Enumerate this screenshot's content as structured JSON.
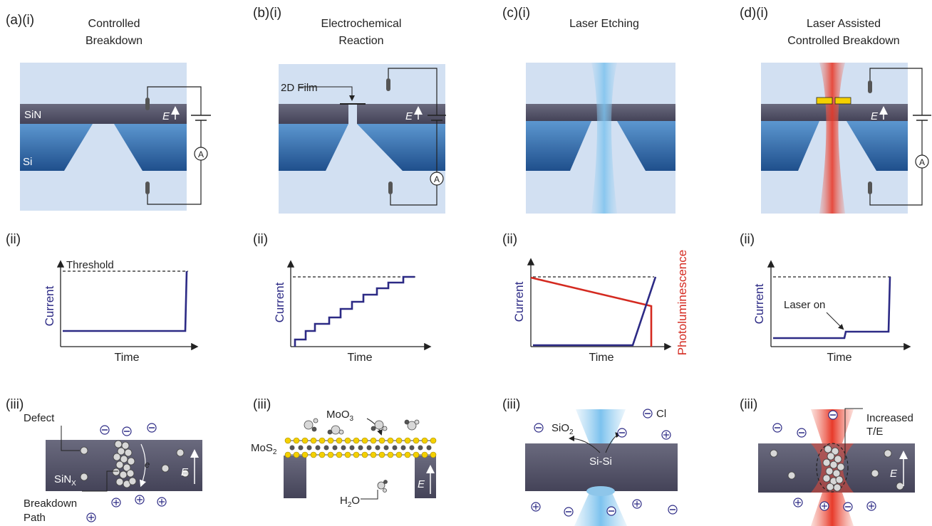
{
  "panels": [
    {
      "id": "a",
      "row_i_label": "(a)(i)",
      "title_lines": [
        "Controlled",
        "Breakdown"
      ],
      "layer_labels": {
        "top": "SiN",
        "bottom": "Si"
      },
      "field_label": "E",
      "ammeter_label": "A",
      "row_ii_label": "(ii)",
      "threshold_label": "Threshold",
      "y_axis_label": "Current",
      "x_axis_label": "Time",
      "row_iii_label": "(iii)",
      "defect_label": "Defect",
      "material_label": "SiN",
      "material_sub": "X",
      "electron_label": "e",
      "breakdown_label_lines": [
        "Breakdown",
        "Path"
      ]
    },
    {
      "id": "b",
      "row_i_label": "(b)(i)",
      "title_lines": [
        "Electrochemical",
        "Reaction"
      ],
      "film_label": "2D Film",
      "field_label": "E",
      "ammeter_label": "A",
      "row_ii_label": "(ii)",
      "y_axis_label": "Current",
      "x_axis_label": "Time",
      "row_iii_label": "(iii)",
      "moo3_label": "MoO",
      "moo3_sub": "3",
      "mos2_label": "MoS",
      "mos2_sub": "2",
      "h2o_label_pre": "H",
      "h2o_sub": "2",
      "h2o_label_post": "O",
      "field_label_iii": "E"
    },
    {
      "id": "c",
      "row_i_label": "(c)(i)",
      "title_lines": [
        "Laser Etching"
      ],
      "row_ii_label": "(ii)",
      "y_axis_label": "Current",
      "x_axis_label": "Time",
      "y2_axis_label": "Photoluminescence",
      "row_iii_label": "(iii)",
      "sio2_label": "SiO",
      "sio2_sub": "2",
      "sisi_label": "Si-Si",
      "cl_label": "Cl"
    },
    {
      "id": "d",
      "row_i_label": "(d)(i)",
      "title_lines": [
        "Laser Assisted",
        "Controlled Breakdown"
      ],
      "field_label": "E",
      "ammeter_label": "A",
      "row_ii_label": "(ii)",
      "laser_on_label": "Laser on",
      "y_axis_label": "Current",
      "x_axis_label": "Time",
      "row_iii_label": "(iii)",
      "increased_label_lines": [
        "Increased",
        "T/E"
      ],
      "field_label_iii": "E"
    }
  ],
  "colors": {
    "background_box": "#d2e0f2",
    "sin_layer": "#55546a",
    "si_dark": "#1f5a9a",
    "si_light": "#5c97d0",
    "trace": "#2c2a85",
    "photoluminescence": "#d42a20",
    "laser_blue": "#9dd0f0",
    "laser_red": "#ee4a3a",
    "electrode_pad": "#f4d000"
  }
}
